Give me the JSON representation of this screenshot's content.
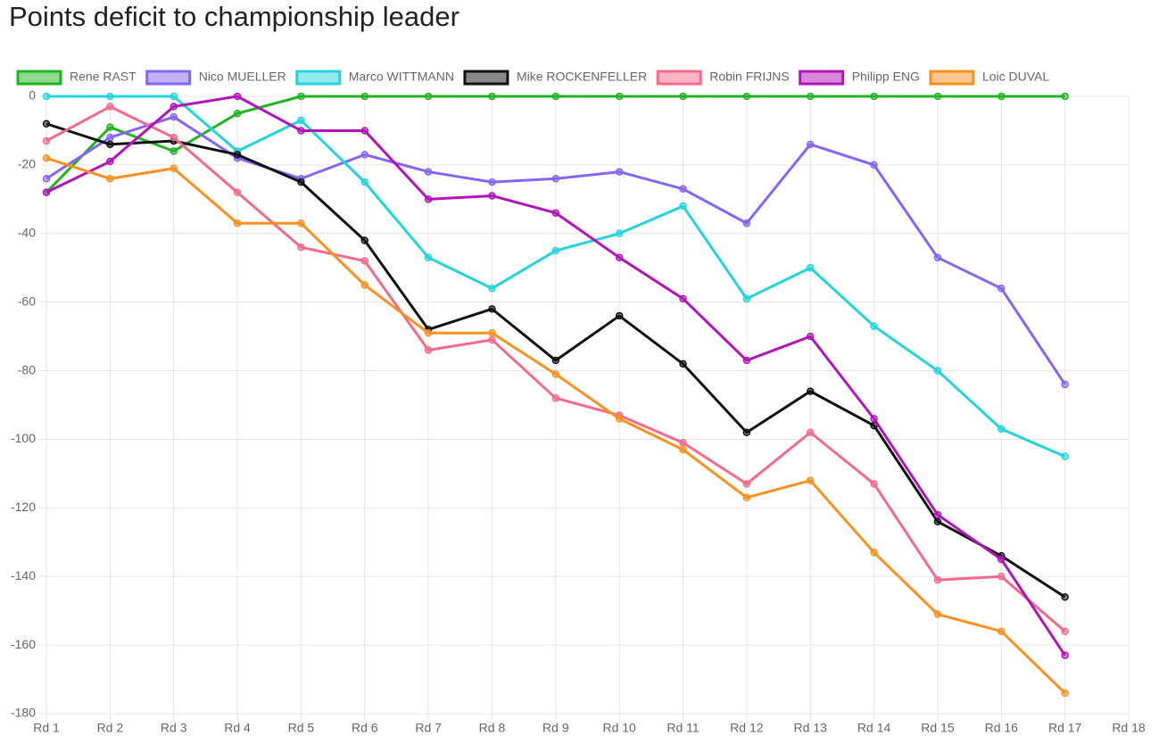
{
  "chart_data": {
    "type": "line",
    "title": "Points deficit to championship leader",
    "categories": [
      "Rd 1",
      "Rd 2",
      "Rd 3",
      "Rd 4",
      "Rd 5",
      "Rd 6",
      "Rd 7",
      "Rd 8",
      "Rd 9",
      "Rd 10",
      "Rd 11",
      "Rd 12",
      "Rd 13",
      "Rd 14",
      "Rd 15",
      "Rd 16",
      "Rd 17",
      "Rd 18"
    ],
    "ylim": [
      -180,
      0
    ],
    "yticks": [
      0,
      -20,
      -40,
      -60,
      -80,
      -100,
      -120,
      -140,
      -160,
      -180
    ],
    "grid": true,
    "legend": "top",
    "series": [
      {
        "name": "Rene RAST",
        "color": "#21b421",
        "values": [
          -28,
          -9,
          -16,
          -5,
          0,
          0,
          0,
          0,
          0,
          0,
          0,
          0,
          0,
          0,
          0,
          0,
          0,
          null
        ]
      },
      {
        "name": "Nico MUELLER",
        "color": "#8466f2",
        "values": [
          -24,
          -12,
          -6,
          -18,
          -24,
          -17,
          -22,
          -25,
          -24,
          -22,
          -27,
          -37,
          -14,
          -20,
          -47,
          -56,
          -84,
          null
        ]
      },
      {
        "name": "Marco WITTMANN",
        "color": "#22d5dd",
        "values": [
          0,
          0,
          0,
          -16,
          -7,
          -25,
          -47,
          -56,
          -45,
          -40,
          -32,
          -59,
          -50,
          -67,
          -80,
          -97,
          -105,
          null
        ]
      },
      {
        "name": "Mike ROCKENFELLER",
        "color": "#111111",
        "values": [
          -8,
          -14,
          -13,
          -17,
          -25,
          -42,
          -68,
          -62,
          -77,
          -64,
          -78,
          -98,
          -86,
          -96,
          -124,
          -134,
          -146,
          null
        ]
      },
      {
        "name": "Robin FRIJNS",
        "color": "#f36a8c",
        "values": [
          -13,
          -3,
          -12,
          -28,
          -44,
          -48,
          -74,
          -71,
          -88,
          -93,
          -101,
          -113,
          -98,
          -113,
          -141,
          -140,
          -156,
          null
        ]
      },
      {
        "name": "Philipp ENG",
        "color": "#b214b8",
        "values": [
          -28,
          -19,
          -3,
          0,
          -10,
          -10,
          -30,
          -29,
          -34,
          -47,
          -59,
          -77,
          -70,
          -94,
          -122,
          -135,
          -163,
          null
        ]
      },
      {
        "name": "Loic DUVAL",
        "color": "#f7911f",
        "values": [
          -18,
          -24,
          -21,
          -37,
          -37,
          -55,
          -69,
          -69,
          -81,
          -94,
          -103,
          -117,
          -112,
          -133,
          -151,
          -156,
          -174,
          null
        ]
      }
    ]
  }
}
